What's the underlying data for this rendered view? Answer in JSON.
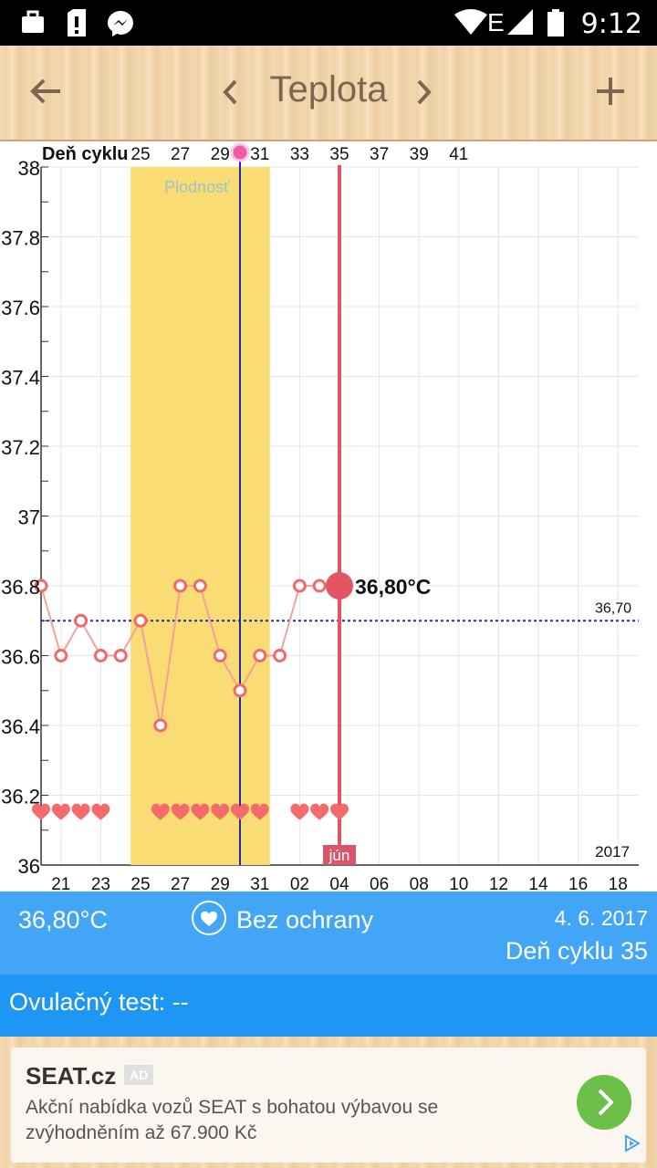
{
  "status": {
    "time": "9:12",
    "network": "E"
  },
  "toolbar": {
    "title": "Teplota",
    "back_icon": "arrow-back-icon",
    "prev_icon": "chevron-left-icon",
    "next_icon": "chevron-right-icon",
    "add_icon": "plus-icon"
  },
  "chart_data": {
    "type": "line",
    "cycle_axis_label": "Deň cyklu",
    "cycle_day_ticks": [
      "25",
      "27",
      "29",
      "31",
      "33",
      "35",
      "37",
      "39",
      "41"
    ],
    "date_ticks": [
      "21",
      "23",
      "25",
      "27",
      "29",
      "31",
      "02",
      "04",
      "06",
      "08",
      "10",
      "12",
      "14",
      "16",
      "18"
    ],
    "y_ticks": [
      "36",
      "36.2",
      "36.4",
      "36.6",
      "36.8",
      "37",
      "37.2",
      "37.4",
      "37.6",
      "37.8",
      "38"
    ],
    "ylim": [
      36,
      38
    ],
    "temperatures": [
      36.8,
      36.6,
      36.7,
      36.6,
      36.6,
      36.7,
      36.4,
      36.8,
      36.8,
      36.6,
      36.5,
      36.6,
      36.6,
      36.8,
      36.8,
      36.8
    ],
    "heart_days": [
      0,
      1,
      2,
      3,
      6,
      7,
      8,
      9,
      10,
      11,
      13,
      14,
      15
    ],
    "fertile_label": "Plodnosť",
    "fertile_start_index": 4.5,
    "fertile_end_index": 11.5,
    "ovulation_index": 10,
    "baseline": 36.7,
    "baseline_label": "36,70",
    "selected_index": 15,
    "selected_label": "36,80°C",
    "month_label": "jún",
    "year_label": "2017",
    "colors": {
      "line": "#f4a0a0",
      "point": "#f06a6a",
      "fertile": "#f9dc73",
      "ovulation": "#1e2aa8",
      "baseline": "#1e2aa8",
      "selected": "#e25563",
      "heart": "#f36b6b"
    }
  },
  "info": {
    "temperature": "36,80°C",
    "protection": "Bez ochrany",
    "date": "4. 6. 2017",
    "cycle_day": "Deň cyklu 35"
  },
  "ovulation_test": "Ovulačný test: --",
  "ad": {
    "title": "SEAT.cz",
    "badge": "AD",
    "text": "Akční nabídka vozů SEAT s bohatou výbavou se zvýhodněním až 67.900 Kč"
  }
}
